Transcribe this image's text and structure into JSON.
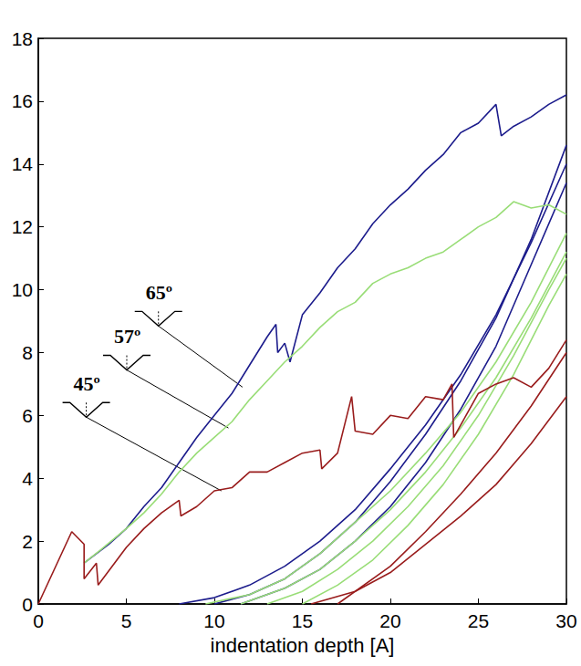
{
  "chart_data": {
    "type": "line",
    "xlabel": "indentation depth [A]",
    "xlim": [
      0,
      30
    ],
    "xticks": [
      0,
      5,
      10,
      15,
      20,
      25,
      30
    ],
    "ylim": [
      0,
      18
    ],
    "yticks": [
      0,
      2,
      4,
      6,
      8,
      10,
      12,
      14,
      16,
      18
    ],
    "series": [
      {
        "name": "65º",
        "color": "#1c1c8c",
        "annotation": {
          "x": 6.1,
          "y": 9.6,
          "to_x": 11.6,
          "to_y": 6.9
        },
        "curves": [
          {
            "x": [
              2.6,
              4,
              5,
              6,
              7,
              8,
              9,
              10,
              11,
              12,
              13,
              13.5,
              13.6,
              14,
              14.3,
              15,
              16,
              17,
              18,
              19,
              20,
              21,
              22,
              23,
              24,
              25,
              26,
              26.3,
              27,
              28,
              29,
              30
            ],
            "values": [
              1.3,
              1.9,
              2.4,
              3.1,
              3.7,
              4.5,
              5.3,
              6.0,
              6.7,
              7.6,
              8.5,
              8.9,
              8.0,
              8.3,
              7.7,
              9.2,
              9.9,
              10.7,
              11.3,
              12.1,
              12.7,
              13.2,
              13.8,
              14.3,
              15.0,
              15.3,
              15.9,
              14.9,
              15.2,
              15.5,
              15.9,
              16.2
            ]
          },
          {
            "x": [
              8,
              10,
              12,
              14,
              16,
              18,
              20,
              22,
              24,
              26,
              28,
              30
            ],
            "values": [
              0,
              0.2,
              0.6,
              1.2,
              2.0,
              3.0,
              4.3,
              5.7,
              7.3,
              9.2,
              11.5,
              14.0
            ]
          },
          {
            "x": [
              10,
              12,
              14,
              16,
              18,
              20,
              22,
              24,
              26,
              28,
              30
            ],
            "values": [
              0,
              0.3,
              0.8,
              1.6,
              2.6,
              3.9,
              5.4,
              7.1,
              9.1,
              11.6,
              14.6
            ]
          },
          {
            "x": [
              11.5,
              14,
              16,
              18,
              20,
              22,
              24,
              26,
              28,
              30
            ],
            "values": [
              0,
              0.5,
              1.1,
              2.0,
              3.1,
              4.5,
              6.2,
              8.2,
              10.8,
              13.4
            ]
          }
        ]
      },
      {
        "name": "57º",
        "color": "#99dd77",
        "annotation": {
          "x": 4.3,
          "y": 8.2,
          "to_x": 10.8,
          "to_y": 5.6
        },
        "curves": [
          {
            "x": [
              2.6,
              3.5,
              5,
              6,
              7,
              8,
              9,
              10,
              11,
              12,
              13,
              14,
              15,
              16,
              17,
              18,
              19,
              20,
              21,
              22,
              23,
              24,
              25,
              26,
              27,
              28,
              29,
              30
            ],
            "values": [
              1.3,
              1.7,
              2.4,
              2.9,
              3.5,
              4.2,
              4.8,
              5.3,
              5.8,
              6.5,
              7.1,
              7.7,
              8.2,
              8.8,
              9.3,
              9.6,
              10.2,
              10.5,
              10.7,
              11.0,
              11.2,
              11.6,
              12.0,
              12.3,
              12.8,
              12.6,
              12.7,
              12.4
            ]
          },
          {
            "x": [
              9.5,
              12,
              14,
              16,
              18,
              20,
              22,
              24,
              26,
              28,
              30
            ],
            "values": [
              0,
              0.3,
              0.8,
              1.6,
              2.6,
              3.6,
              4.8,
              6.1,
              7.7,
              9.6,
              11.8
            ]
          },
          {
            "x": [
              11.5,
              14,
              16,
              18,
              20,
              22,
              24,
              26,
              28,
              30
            ],
            "values": [
              0,
              0.5,
              1.1,
              2.0,
              3.0,
              4.2,
              5.6,
              7.2,
              9.1,
              11.2
            ]
          },
          {
            "x": [
              13,
              15,
              17,
              19,
              21,
              23,
              25,
              27,
              29,
              30
            ],
            "values": [
              0,
              0.4,
              1.1,
              2.0,
              3.1,
              4.4,
              6.0,
              7.9,
              10.0,
              11.0
            ]
          },
          {
            "x": [
              15,
              17,
              19,
              21,
              23,
              25,
              27,
              29,
              30
            ],
            "values": [
              0,
              0.6,
              1.4,
              2.5,
              3.8,
              5.4,
              7.3,
              9.5,
              10.5
            ]
          }
        ]
      },
      {
        "name": "45º",
        "color": "#991c1c",
        "annotation": {
          "x": 2.0,
          "y": 6.7,
          "to_x": 10.4,
          "to_y": 3.6
        },
        "curves": [
          {
            "x": [
              0,
              1.9,
              2.6,
              2.6,
              3.3,
              3.4,
              5,
              6,
              7,
              8,
              8.1,
              9,
              10,
              11,
              12,
              13,
              14,
              15,
              16,
              16.1,
              17,
              17.8,
              18,
              19,
              20,
              21,
              22,
              23,
              23.5,
              23.6,
              25,
              26,
              27,
              28,
              29,
              30
            ],
            "values": [
              0,
              2.3,
              1.9,
              0.8,
              1.3,
              0.6,
              1.8,
              2.4,
              2.9,
              3.3,
              2.8,
              3.1,
              3.6,
              3.7,
              4.2,
              4.2,
              4.5,
              4.8,
              4.9,
              4.3,
              4.8,
              6.6,
              5.5,
              5.4,
              6.0,
              5.9,
              6.6,
              6.5,
              7.0,
              5.3,
              6.7,
              7.0,
              7.2,
              6.9,
              7.5,
              8.4
            ]
          },
          {
            "x": [
              15.5,
              18,
              20,
              22,
              24,
              26,
              28,
              30
            ],
            "values": [
              0,
              0.4,
              1.0,
              1.9,
              2.8,
              3.8,
              5.1,
              6.6
            ]
          },
          {
            "x": [
              17,
              20,
              22,
              24,
              26,
              28,
              30
            ],
            "values": [
              0,
              1.2,
              2.3,
              3.5,
              4.8,
              6.3,
              8.0
            ]
          }
        ]
      }
    ]
  }
}
